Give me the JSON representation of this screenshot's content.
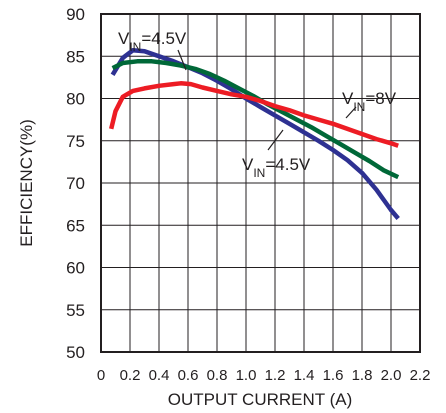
{
  "chart_data": {
    "type": "line",
    "title": "",
    "xlabel": "OUTPUT CURRENT (A)",
    "ylabel": "EFFICIENCY(%)",
    "xlim": [
      0,
      2.2
    ],
    "ylim": [
      50,
      90
    ],
    "x_ticks": [
      "0",
      "0.2",
      "0.4",
      "0.6",
      "0.8",
      "1.0",
      "1.2",
      "1.4",
      "1.6",
      "1.8",
      "2.0",
      "2.2"
    ],
    "y_ticks": [
      "50",
      "55",
      "60",
      "65",
      "70",
      "75",
      "80",
      "85",
      "90"
    ],
    "grid": true,
    "series": [
      {
        "color": "#2e3192",
        "points": [
          [
            0.08,
            82.8
          ],
          [
            0.15,
            84.8
          ],
          [
            0.22,
            85.7
          ],
          [
            0.3,
            85.6
          ],
          [
            0.4,
            85.0
          ],
          [
            0.5,
            84.4
          ],
          [
            0.6,
            83.7
          ],
          [
            0.7,
            83.0
          ],
          [
            0.8,
            82.1
          ],
          [
            0.9,
            81.1
          ],
          [
            1.0,
            80.0
          ],
          [
            1.1,
            79.0
          ],
          [
            1.2,
            78.0
          ],
          [
            1.3,
            77.0
          ],
          [
            1.4,
            76.0
          ],
          [
            1.5,
            75.0
          ],
          [
            1.6,
            73.9
          ],
          [
            1.7,
            72.7
          ],
          [
            1.8,
            71.2
          ],
          [
            1.9,
            69.2
          ],
          [
            2.0,
            66.8
          ],
          [
            2.05,
            65.8
          ]
        ]
      },
      {
        "color": "#006838",
        "points": [
          [
            0.08,
            83.6
          ],
          [
            0.15,
            84.2
          ],
          [
            0.25,
            84.4
          ],
          [
            0.35,
            84.4
          ],
          [
            0.45,
            84.2
          ],
          [
            0.55,
            83.9
          ],
          [
            0.65,
            83.5
          ],
          [
            0.75,
            82.9
          ],
          [
            0.85,
            82.1
          ],
          [
            0.95,
            81.2
          ],
          [
            1.05,
            80.3
          ],
          [
            1.15,
            79.3
          ],
          [
            1.25,
            78.4
          ],
          [
            1.35,
            77.5
          ],
          [
            1.45,
            76.6
          ],
          [
            1.55,
            75.6
          ],
          [
            1.65,
            74.6
          ],
          [
            1.75,
            73.6
          ],
          [
            1.85,
            72.6
          ],
          [
            1.95,
            71.5
          ],
          [
            2.05,
            70.7
          ]
        ]
      },
      {
        "color": "#ed1c24",
        "points": [
          [
            0.07,
            76.4
          ],
          [
            0.1,
            78.5
          ],
          [
            0.15,
            80.2
          ],
          [
            0.22,
            80.9
          ],
          [
            0.3,
            81.2
          ],
          [
            0.4,
            81.5
          ],
          [
            0.5,
            81.7
          ],
          [
            0.55,
            81.8
          ],
          [
            0.62,
            81.7
          ],
          [
            0.7,
            81.3
          ],
          [
            0.8,
            80.9
          ],
          [
            0.9,
            80.5
          ],
          [
            1.0,
            80.2
          ],
          [
            1.1,
            79.7
          ],
          [
            1.2,
            79.1
          ],
          [
            1.3,
            78.6
          ],
          [
            1.4,
            78.0
          ],
          [
            1.5,
            77.5
          ],
          [
            1.6,
            77.0
          ],
          [
            1.7,
            76.4
          ],
          [
            1.8,
            75.8
          ],
          [
            1.9,
            75.2
          ],
          [
            2.0,
            74.7
          ],
          [
            2.05,
            74.4
          ]
        ]
      }
    ],
    "annotations": [
      {
        "main": "V",
        "sub": "IN",
        "tail": "=4.5V"
      },
      {
        "main": "V",
        "sub": "IN",
        "tail": "=8V"
      },
      {
        "main": "V",
        "sub": "IN",
        "tail": "=4.5V"
      }
    ]
  }
}
